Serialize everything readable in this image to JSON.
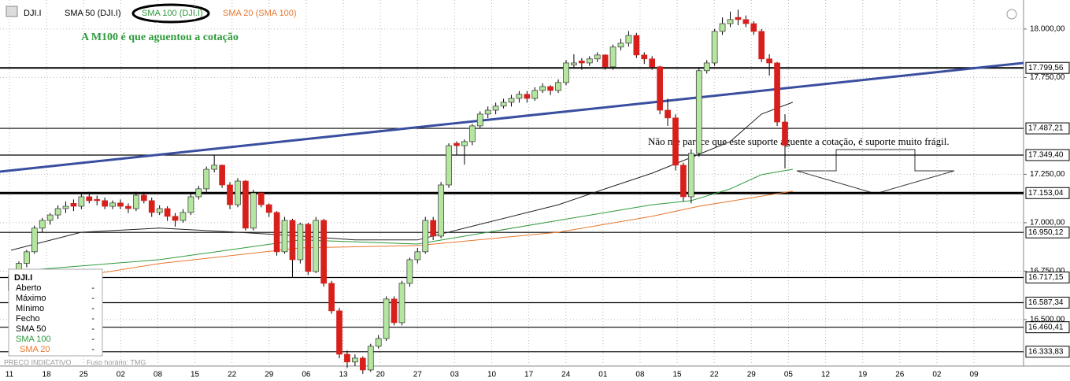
{
  "toolbar": {
    "symbol": "DJI.I",
    "indicators": [
      "SMA 50 (DJI.I)",
      "SMA 100 (DJI.I)",
      "SMA 20 (SMA 100)"
    ]
  },
  "chart_data": {
    "type": "candlestick",
    "candles": [
      [
        16650,
        16740,
        16640,
        16728
      ],
      [
        16728,
        16800,
        16700,
        16790
      ],
      [
        16790,
        16860,
        16770,
        16850
      ],
      [
        16850,
        16985,
        16840,
        16972
      ],
      [
        16972,
        17025,
        16950,
        17012
      ],
      [
        17012,
        17050,
        16990,
        17040
      ],
      [
        17040,
        17090,
        17020,
        17073
      ],
      [
        17073,
        17110,
        17050,
        17085
      ],
      [
        17100,
        17120,
        17060,
        17085
      ],
      [
        17085,
        17150,
        17070,
        17134
      ],
      [
        17134,
        17160,
        17100,
        17114
      ],
      [
        17120,
        17140,
        17090,
        17114
      ],
      [
        17114,
        17130,
        17070,
        17085
      ],
      [
        17085,
        17115,
        17070,
        17102
      ],
      [
        17102,
        17120,
        17070,
        17085
      ],
      [
        17085,
        17100,
        17050,
        17073
      ],
      [
        17073,
        17160,
        17060,
        17142
      ],
      [
        17142,
        17160,
        17100,
        17114
      ],
      [
        17114,
        17130,
        17030,
        17053
      ],
      [
        17053,
        17090,
        17040,
        17073
      ],
      [
        17073,
        17085,
        17010,
        17033
      ],
      [
        17033,
        17050,
        16980,
        17012
      ],
      [
        17012,
        17070,
        17000,
        17053
      ],
      [
        17053,
        17150,
        17040,
        17134
      ],
      [
        17134,
        17190,
        17120,
        17175
      ],
      [
        17175,
        17290,
        17160,
        17276
      ],
      [
        17276,
        17350,
        17260,
        17297
      ],
      [
        17297,
        17300,
        17180,
        17195
      ],
      [
        17195,
        17210,
        17070,
        17093
      ],
      [
        17093,
        17230,
        17080,
        17215
      ],
      [
        17215,
        17220,
        16960,
        16972
      ],
      [
        16972,
        17170,
        16960,
        17154
      ],
      [
        17154,
        17160,
        17080,
        17093
      ],
      [
        17093,
        17100,
        17030,
        17053
      ],
      [
        17053,
        17060,
        16830,
        16850
      ],
      [
        16850,
        17030,
        16840,
        17012
      ],
      [
        17012,
        17020,
        16720,
        16809
      ],
      [
        16809,
        17000,
        16790,
        16992
      ],
      [
        16992,
        17000,
        16730,
        16748
      ],
      [
        16748,
        17030,
        16740,
        17012
      ],
      [
        17012,
        17020,
        16670,
        16687
      ],
      [
        16687,
        16700,
        16530,
        16545
      ],
      [
        16545,
        16560,
        16300,
        16321
      ],
      [
        16321,
        16340,
        16250,
        16281
      ],
      [
        16281,
        16320,
        16260,
        16301
      ],
      [
        16301,
        16310,
        16220,
        16240
      ],
      [
        16240,
        16375,
        16230,
        16362
      ],
      [
        16362,
        16420,
        16350,
        16402
      ],
      [
        16402,
        16620,
        16390,
        16606
      ],
      [
        16606,
        16620,
        16470,
        16484
      ],
      [
        16484,
        16700,
        16470,
        16687
      ],
      [
        16687,
        16820,
        16670,
        16809
      ],
      [
        16809,
        16870,
        16790,
        16850
      ],
      [
        16850,
        17030,
        16840,
        17012
      ],
      [
        17012,
        17030,
        16910,
        16931
      ],
      [
        16931,
        17210,
        16920,
        17195
      ],
      [
        17195,
        17410,
        17180,
        17398
      ],
      [
        17410,
        17420,
        17350,
        17398
      ],
      [
        17398,
        17430,
        17300,
        17419
      ],
      [
        17419,
        17510,
        17400,
        17500
      ],
      [
        17500,
        17575,
        17490,
        17561
      ],
      [
        17561,
        17600,
        17540,
        17581
      ],
      [
        17581,
        17620,
        17560,
        17602
      ],
      [
        17602,
        17640,
        17590,
        17622
      ],
      [
        17622,
        17660,
        17600,
        17642
      ],
      [
        17642,
        17680,
        17620,
        17663
      ],
      [
        17663,
        17680,
        17620,
        17642
      ],
      [
        17642,
        17700,
        17630,
        17683
      ],
      [
        17683,
        17720,
        17670,
        17703
      ],
      [
        17703,
        17710,
        17660,
        17683
      ],
      [
        17683,
        17740,
        17670,
        17724
      ],
      [
        17724,
        17840,
        17710,
        17825
      ],
      [
        17815,
        17870,
        17800,
        17825
      ],
      [
        17835,
        17850,
        17790,
        17825
      ],
      [
        17825,
        17860,
        17810,
        17846
      ],
      [
        17846,
        17880,
        17830,
        17866
      ],
      [
        17866,
        17870,
        17790,
        17805
      ],
      [
        17805,
        17920,
        17790,
        17907
      ],
      [
        17907,
        17950,
        17890,
        17927
      ],
      [
        17927,
        17990,
        17910,
        17967
      ],
      [
        17967,
        17980,
        17850,
        17866
      ],
      [
        17866,
        17880,
        17820,
        17846
      ],
      [
        17846,
        17860,
        17790,
        17805
      ],
      [
        17805,
        17810,
        17560,
        17581
      ],
      [
        17581,
        17640,
        17500,
        17541
      ],
      [
        17541,
        17560,
        17270,
        17297
      ],
      [
        17297,
        17310,
        17110,
        17134
      ],
      [
        17134,
        17380,
        17100,
        17358
      ],
      [
        17358,
        17800,
        17340,
        17785
      ],
      [
        17785,
        17840,
        17770,
        17825
      ],
      [
        17825,
        18000,
        17810,
        17988
      ],
      [
        17988,
        18060,
        17970,
        18028
      ],
      [
        18028,
        18090,
        18010,
        18049
      ],
      [
        18060,
        18100,
        18020,
        18049
      ],
      [
        18049,
        18070,
        18010,
        18028
      ],
      [
        18028,
        18040,
        17970,
        17988
      ],
      [
        17988,
        18000,
        17830,
        17846
      ],
      [
        17846,
        17870,
        17760,
        17825
      ],
      [
        17825,
        17830,
        17500,
        17520
      ],
      [
        17520,
        17560,
        17280,
        17400
      ]
    ],
    "up_color": "#b5e6a0",
    "down_color": "#d7201b",
    "ylim": [
      16260,
      18150
    ],
    "yticks": [
      {
        "value": 18000,
        "label": "18.000,00"
      },
      {
        "value": 17750,
        "label": "17.750,00"
      },
      {
        "value": 17250,
        "label": "17.250,00"
      },
      {
        "value": 17000,
        "label": "17.000,00"
      },
      {
        "value": 16750,
        "label": "16.750,00"
      },
      {
        "value": 16500,
        "label": "16.500,00"
      }
    ],
    "levels": [
      {
        "value": 17799.56,
        "label": "17.799,56"
      },
      {
        "value": 17487.21,
        "label": "17.487,21"
      },
      {
        "value": 17349.4,
        "label": "17.349,40"
      },
      {
        "value": 17153.04,
        "label": "17.153,04"
      },
      {
        "value": 16950.12,
        "label": "16.950,12"
      },
      {
        "value": 16717.15,
        "label": "16.717,15"
      },
      {
        "value": 16587.34,
        "label": "16.587,34"
      },
      {
        "value": 16460.41,
        "label": "16.460,41"
      },
      {
        "value": 16333.83,
        "label": "16.333,83"
      }
    ],
    "x_labels": [
      "11",
      "18",
      "25",
      "02",
      "08",
      "15",
      "22",
      "29",
      "06",
      "13",
      "20",
      "27",
      "03",
      "10",
      "17",
      "24",
      "01",
      "08",
      "15",
      "22",
      "29",
      "05",
      "12",
      "19",
      "26",
      "02",
      "09"
    ],
    "series": [
      {
        "name": "SMA 50",
        "color": "#222222",
        "x": [
          0,
          9,
          19,
          29,
          37,
          44,
          52,
          60,
          70,
          76,
          82,
          87,
          92,
          96,
          100
        ],
        "values": [
          16858,
          16951,
          16972,
          16951,
          16931,
          16911,
          16911,
          16992,
          17093,
          17175,
          17256,
          17337,
          17419,
          17561,
          17622
        ]
      },
      {
        "name": "SMA 100",
        "color": "#2e9a3c",
        "x": [
          0,
          19,
          37,
          52,
          70,
          82,
          87,
          92,
          96,
          100
        ],
        "values": [
          16748,
          16809,
          16911,
          16890,
          17012,
          17093,
          17114,
          17175,
          17248,
          17276
        ]
      },
      {
        "name": "SMA 20",
        "color": "#e8772e",
        "x": [
          0,
          19,
          37,
          52,
          70,
          82,
          88,
          100
        ],
        "values": [
          16667,
          16789,
          16870,
          16882,
          16951,
          17033,
          17085,
          17163
        ]
      }
    ],
    "trendline": [
      17264,
      17825
    ],
    "annotations": [
      "A M100 é que aguentou a cotação",
      "Não me parece que este suporte aguente a cotação, é suporte muito frágil."
    ]
  },
  "info_panel": {
    "title": "DJI.I",
    "rows": [
      [
        "Aberto",
        "-"
      ],
      [
        "Máximo",
        "-"
      ],
      [
        "Mínimo",
        "-"
      ],
      [
        "Fecho",
        "-"
      ],
      [
        "SMA 50",
        "-"
      ],
      [
        "SMA 100",
        "-"
      ],
      [
        "SMA 20",
        "-"
      ]
    ]
  },
  "footer": [
    "PREÇO INDICATIVO",
    "Fuso horário: TMG"
  ]
}
